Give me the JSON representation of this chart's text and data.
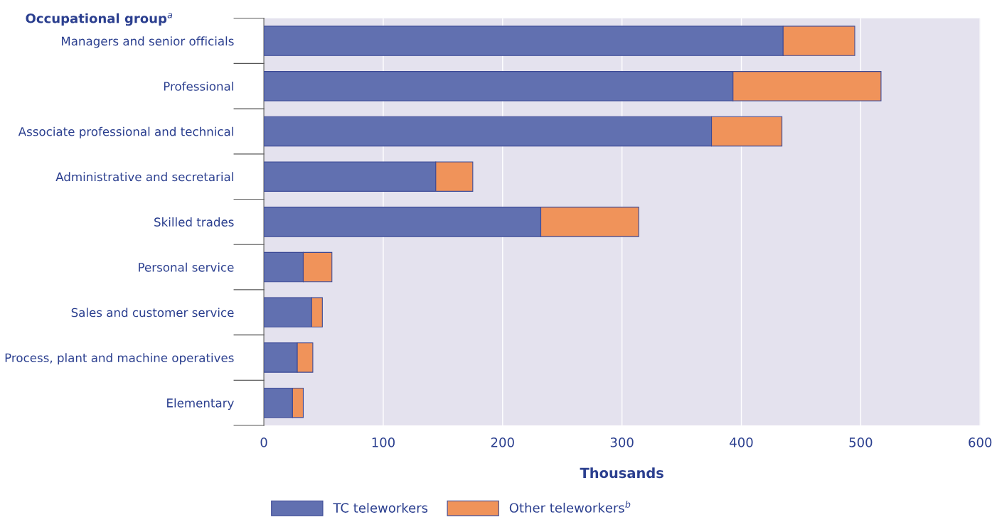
{
  "chart_data": {
    "type": "bar",
    "orientation": "horizontal",
    "stacked": true,
    "ylabel": "Occupational group$^{a}$",
    "xlabel": "Thousands",
    "categories": [
      "Managers and senior officials",
      "Professional",
      "Associate professional and technical",
      "Administrative and secretarial",
      "Skilled trades",
      "Personal service",
      "Sales and customer service",
      "Process, plant and machine operatives",
      "Elementary"
    ],
    "series": [
      {
        "name": "TC teleworkers",
        "color": "#6170b0",
        "values": [
          435,
          393,
          375,
          144,
          232,
          33,
          40,
          28,
          24
        ]
      },
      {
        "name": "Other teleworkers$^{b}$",
        "color": "#f0935a",
        "values": [
          60,
          124,
          59,
          31,
          82,
          24,
          9,
          13,
          9
        ]
      }
    ],
    "xlim": [
      0,
      600
    ],
    "xticks": [
      0,
      100,
      200,
      300,
      400,
      500,
      600
    ],
    "grid": "x",
    "legend": "bottom"
  }
}
